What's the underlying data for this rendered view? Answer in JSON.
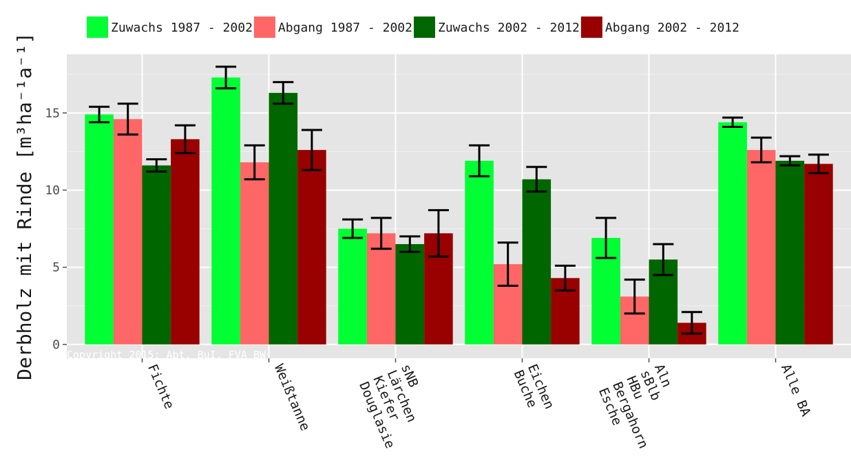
{
  "chart_data": {
    "type": "bar",
    "categories": [
      [
        "Fichte"
      ],
      [
        "Weißtanne"
      ],
      [
        "Douglasie",
        "Kiefer",
        "Lärchen",
        "sNB"
      ],
      [
        "Buche",
        "Eichen"
      ],
      [
        "Esche",
        "Bergahorn",
        "HBu",
        "sBlb",
        "Aln"
      ],
      [
        "Alle BA"
      ]
    ],
    "series": [
      {
        "name": "Zuwachs 1987 - 2002",
        "color": "#00ff33",
        "values": [
          14.9,
          17.3,
          7.5,
          11.9,
          6.9,
          14.4
        ],
        "err": [
          0.5,
          0.7,
          0.6,
          1.0,
          1.3,
          0.3
        ]
      },
      {
        "name": "Abgang 1987 - 2002",
        "color": "#ff6666",
        "values": [
          14.6,
          11.8,
          7.2,
          5.2,
          3.1,
          12.6
        ],
        "err": [
          1.0,
          1.1,
          1.0,
          1.4,
          1.1,
          0.8
        ]
      },
      {
        "name": "Zuwachs 2002 - 2012",
        "color": "#006600",
        "values": [
          11.6,
          16.3,
          6.5,
          10.7,
          5.5,
          11.9
        ],
        "err": [
          0.4,
          0.7,
          0.5,
          0.8,
          1.0,
          0.3
        ]
      },
      {
        "name": "Abgang 2002 - 2012",
        "color": "#990000",
        "values": [
          13.3,
          12.6,
          7.2,
          4.3,
          1.4,
          11.7
        ],
        "err": [
          0.9,
          1.3,
          1.5,
          0.8,
          0.7,
          0.6
        ]
      }
    ],
    "ylabel": "Derbholz mit Rinde [m³ha⁻¹a⁻¹]",
    "ylim": [
      -0.9,
      18.8
    ],
    "yticks": [
      0,
      5,
      10,
      15
    ],
    "grid": true,
    "legend_position": "top",
    "panel_background": "#e5e5e5",
    "grid_color": "#ffffff",
    "annotation": "Copyright 2015: Abt. BuI, FVA BW"
  }
}
